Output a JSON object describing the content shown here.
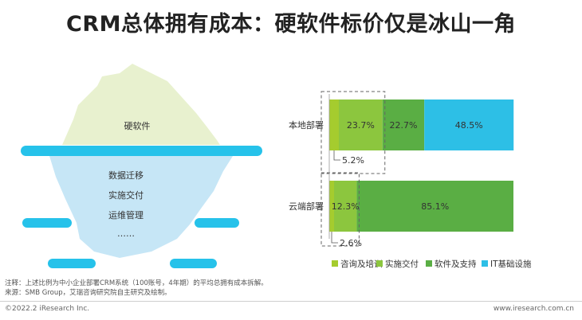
{
  "title": "CRM总体拥有成本：硬软件标价仅是冰山一角",
  "iceberg": {
    "top_label": "硬软件",
    "bottom_labels": [
      "数据迁移",
      "实施交付",
      "运维管理",
      "……"
    ]
  },
  "chart_data": {
    "type": "bar",
    "orientation": "horizontal",
    "stacked": true,
    "categories": [
      "本地部署",
      "云端部署"
    ],
    "series": [
      {
        "name": "咨询及培训",
        "values": [
          5.2,
          2.6
        ],
        "color": "#a5cc2e"
      },
      {
        "name": "实施交付",
        "values": [
          23.7,
          12.3
        ],
        "color": "#8cc63e"
      },
      {
        "name": "软件及支持",
        "values": [
          22.7,
          85.1
        ],
        "color": "#5aae44"
      },
      {
        "name": "IT基础设施",
        "values": [
          48.5,
          0
        ],
        "color": "#2dbfe6"
      }
    ],
    "data_labels": [
      [
        "5.2%",
        "23.7%",
        "22.7%",
        "48.5%"
      ],
      [
        "2.6%",
        "12.3%",
        "85.1%",
        ""
      ]
    ],
    "legend_position": "bottom"
  },
  "notes": {
    "note1": "注释：上述比例为中小企业部署CRM系统（100账号，4年期）的平均总拥有成本拆解。",
    "note2": "来源：SMB Group，艾瑞咨询研究院自主研究及绘制。"
  },
  "footer": {
    "left": "©2022.2 iResearch Inc.",
    "right": "www.iresearch.com.cn"
  }
}
